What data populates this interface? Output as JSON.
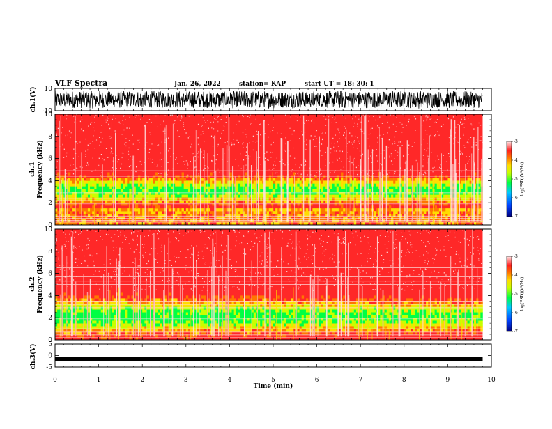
{
  "header": {
    "title": "VLF Spectra",
    "date": "Jan. 26, 2022",
    "station": "station= KAP",
    "start": "start  UT =   18: 30: 1"
  },
  "colors": {
    "spectrum": [
      "#000080",
      "#0044ff",
      "#00c8ff",
      "#00ff44",
      "#c8ff00",
      "#ffdd00",
      "#ff7700",
      "#ff2020",
      "#ffe8e8"
    ],
    "trace": "#000000"
  },
  "chart_data": [
    {
      "type": "line",
      "panel": "ch1-waveform",
      "ylabel": "ch.1(V)",
      "ylim": [
        -10,
        10
      ],
      "yticks": [
        "10",
        "-10"
      ],
      "xlim": [
        0,
        10
      ],
      "description_values": "dense noisy waveform spanning approx -7 to +8 V over 0–9.8 min"
    },
    {
      "type": "heatmap",
      "panel": "ch1-spectrogram",
      "ylabel": "ch.1\nFrequency (kHz)",
      "ylabel_lines": [
        "ch.1",
        "Frequency (kHz)"
      ],
      "ylim": [
        0,
        10
      ],
      "yticks": [
        "0",
        "2",
        "4",
        "6",
        "8",
        "10"
      ],
      "xlim": [
        0,
        10
      ],
      "data_xmax": 9.8,
      "colorbar": {
        "label": "log(PSD)(V²/Hz)",
        "range": [
          -7,
          -3
        ],
        "ticks": [
          "-3",
          "-4",
          "-5",
          "-6",
          "-7"
        ]
      }
    },
    {
      "type": "heatmap",
      "panel": "ch2-spectrogram",
      "ylabel_lines": [
        "ch.2",
        "Frequency (kHz)"
      ],
      "ylim": [
        0,
        10
      ],
      "yticks": [
        "0",
        "2",
        "4",
        "6",
        "8",
        "10"
      ],
      "xlim": [
        0,
        10
      ],
      "data_xmax": 9.8,
      "colorbar": {
        "label": "log(PSD)(V²/Hz)",
        "range": [
          -7,
          -3
        ],
        "ticks": [
          "-3",
          "-4",
          "-5",
          "-6",
          "-7"
        ]
      }
    },
    {
      "type": "line",
      "panel": "ch3-waveform",
      "ylabel": "ch.3(V)",
      "ylim": [
        -5,
        5
      ],
      "yticks": [
        "5",
        "0",
        "-5"
      ],
      "xlim": [
        0,
        10
      ],
      "level": -1.5
    }
  ],
  "xaxis": {
    "label": "Time (min)",
    "ticks": [
      "0",
      "1",
      "2",
      "3",
      "4",
      "5",
      "6",
      "7",
      "8",
      "9",
      "10"
    ]
  }
}
